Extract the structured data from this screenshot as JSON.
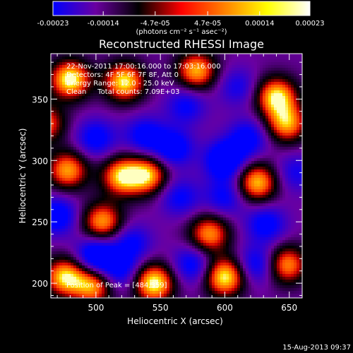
{
  "chart_data": {
    "type": "heatmap",
    "title": "Reconstructed RHESSI Image",
    "xlabel": "Heliocentric X (arcsec)",
    "ylabel": "Heliocentric Y (arcsec)",
    "xlim": [
      465,
      660
    ],
    "ylim": [
      188,
      387
    ],
    "xticks": [
      500,
      550,
      600,
      650
    ],
    "yticks": [
      200,
      250,
      300,
      350
    ],
    "xtick_labels": [
      "500",
      "550",
      "600",
      "650"
    ],
    "ytick_labels": [
      "200",
      "250",
      "300",
      "350"
    ],
    "grid": false,
    "colorbar": {
      "min": -0.00023,
      "max": 0.00023,
      "ticks": [
        -0.00023,
        -0.00014,
        -4.7e-05,
        4.7e-05,
        0.00014,
        0.00023
      ],
      "tick_labels": [
        "-0.00023",
        "-0.00014",
        "-4.7e-05",
        "4.7e-05",
        "0.00014",
        "0.00023"
      ],
      "unit_label": "(photons cm⁻² s⁻¹ asec⁻²)",
      "colors": [
        "#0000ff",
        "#6a00a0",
        "#000000",
        "#ff0000",
        "#ff8000",
        "#ffff00",
        "#ffffff"
      ]
    },
    "annotations": {
      "time_range": "22-Nov-2011 17:00:16.000 to 17:03:16.000",
      "detectors": "Detectors: 4F 5F 6F 7F 8F, Att 0",
      "energy": "Energy Range: 12.0 - 25.0 keV",
      "clean": "Clean     Total counts: 7.09E+03",
      "peak": "Position of Peak = [484,359]"
    },
    "blobs": [
      {
        "x": 480,
        "y": 366,
        "v": 1.0
      },
      {
        "x": 522,
        "y": 364,
        "v": 0.9
      },
      {
        "x": 578,
        "y": 373,
        "v": 0.75
      },
      {
        "x": 640,
        "y": 352,
        "v": 0.9
      },
      {
        "x": 648,
        "y": 330,
        "v": 0.7
      },
      {
        "x": 600,
        "y": 300,
        "v": -0.9
      },
      {
        "x": 560,
        "y": 310,
        "v": -0.7
      },
      {
        "x": 538,
        "y": 320,
        "v": -0.6
      },
      {
        "x": 618,
        "y": 318,
        "v": -0.6
      },
      {
        "x": 500,
        "y": 318,
        "v": -0.6
      },
      {
        "x": 520,
        "y": 287,
        "v": 0.8
      },
      {
        "x": 540,
        "y": 288,
        "v": 0.75
      },
      {
        "x": 478,
        "y": 292,
        "v": 0.7
      },
      {
        "x": 625,
        "y": 282,
        "v": 0.8
      },
      {
        "x": 600,
        "y": 270,
        "v": -0.5
      },
      {
        "x": 565,
        "y": 270,
        "v": -0.5
      },
      {
        "x": 470,
        "y": 255,
        "v": -0.7
      },
      {
        "x": 505,
        "y": 250,
        "v": 0.7
      },
      {
        "x": 528,
        "y": 233,
        "v": -0.5
      },
      {
        "x": 588,
        "y": 240,
        "v": 0.65
      },
      {
        "x": 632,
        "y": 248,
        "v": -0.6
      },
      {
        "x": 500,
        "y": 222,
        "v": -0.9
      },
      {
        "x": 518,
        "y": 210,
        "v": -0.6
      },
      {
        "x": 476,
        "y": 205,
        "v": 0.85
      },
      {
        "x": 498,
        "y": 198,
        "v": 0.7
      },
      {
        "x": 545,
        "y": 200,
        "v": 1.0
      },
      {
        "x": 600,
        "y": 205,
        "v": 0.95
      },
      {
        "x": 575,
        "y": 215,
        "v": -0.6
      },
      {
        "x": 625,
        "y": 215,
        "v": -0.6
      },
      {
        "x": 648,
        "y": 215,
        "v": 0.65
      },
      {
        "x": 570,
        "y": 345,
        "v": -0.5
      },
      {
        "x": 610,
        "y": 360,
        "v": -0.4
      },
      {
        "x": 460,
        "y": 330,
        "v": 0.55
      },
      {
        "x": 655,
        "y": 290,
        "v": -0.4
      }
    ]
  },
  "footer": {
    "date_stamp": "15-Aug-2013 09:37"
  }
}
